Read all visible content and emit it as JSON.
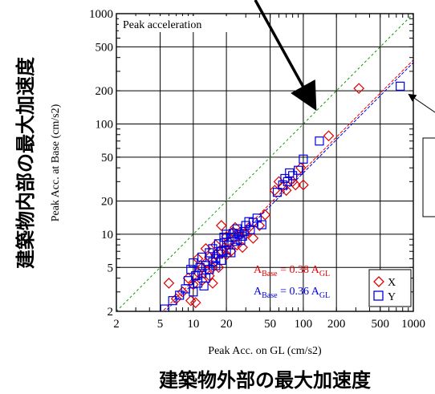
{
  "chart_data": {
    "type": "scatter",
    "title": "Peak acceleration",
    "xlabel": "Peak Acc. on GL (cm/s2)",
    "ylabel": "Peak Acc. at Base (cm/s2)",
    "xlabel_jp": "建築物外部の最大加速度",
    "ylabel_jp": "建築物内部の最大加速度",
    "x_scale": "log",
    "y_scale": "log",
    "xlim": [
      2,
      1000
    ],
    "ylim": [
      2,
      1000
    ],
    "x_ticks": [
      2,
      5,
      10,
      20,
      50,
      100,
      200,
      500,
      1000
    ],
    "y_ticks": [
      2,
      5,
      10,
      20,
      50,
      100,
      200,
      500,
      1000
    ],
    "grid": true,
    "reference_line": {
      "slope": 1,
      "color": "#0a9a0a"
    },
    "fits": [
      {
        "label_main": "A",
        "label_sub1": "Base",
        "label_eq": " = 0.38 A",
        "label_sub2": "GL",
        "coef": 0.38,
        "color": "#e00000"
      },
      {
        "label_main": "A",
        "label_sub1": "Base",
        "label_eq": " = 0.36 A",
        "label_sub2": "GL",
        "coef": 0.36,
        "color": "#0000e0"
      }
    ],
    "series": [
      {
        "name": "X",
        "marker": "diamond",
        "color": "#e00000",
        "x": [
          6,
          7,
          8,
          9,
          9.5,
          10,
          10.5,
          11,
          11,
          12,
          12,
          13,
          13,
          14,
          14,
          15,
          15,
          16,
          16,
          17,
          18,
          18,
          19,
          20,
          20,
          21,
          22,
          23,
          24,
          25,
          26,
          28,
          30,
          32,
          35,
          40,
          45,
          55,
          60,
          65,
          70,
          80,
          85,
          95,
          100,
          170,
          320
        ],
        "y": [
          3.6,
          2.6,
          3.0,
          4.0,
          2.5,
          3.5,
          2.4,
          4.5,
          6.0,
          3.8,
          5.0,
          5.5,
          7.4,
          4.2,
          6.2,
          5.0,
          3.6,
          6.5,
          8.0,
          5.0,
          6.8,
          12.0,
          7.5,
          6.5,
          9.5,
          8.5,
          7.0,
          10.5,
          11.5,
          8.0,
          9.8,
          7.6,
          10.0,
          11.5,
          9.2,
          12.0,
          15.0,
          25.0,
          30.0,
          27.0,
          25.0,
          30.0,
          28.0,
          40.0,
          28.0,
          78.0,
          210.0
        ]
      },
      {
        "name": "Y",
        "marker": "square",
        "color": "#0000e0",
        "x": [
          5.5,
          6.5,
          7.5,
          8.5,
          9,
          9.5,
          10,
          10,
          10.5,
          11,
          11.5,
          12,
          12,
          12.5,
          13,
          13,
          14,
          14,
          15,
          15,
          16,
          16,
          17,
          17,
          18,
          18,
          19,
          19,
          20,
          20,
          21,
          22,
          22,
          23,
          24,
          25,
          25,
          26,
          27,
          28,
          29,
          30,
          32,
          33,
          35,
          38,
          42,
          58,
          65,
          68,
          72,
          75,
          80,
          90,
          100,
          140,
          760
        ],
        "y": [
          2.1,
          2.5,
          2.8,
          3.2,
          3.8,
          4.8,
          3.0,
          5.5,
          4.2,
          3.6,
          5.0,
          4.4,
          6.2,
          3.4,
          5.2,
          4.0,
          4.8,
          6.8,
          5.6,
          7.4,
          6.0,
          5.2,
          6.6,
          8.2,
          5.8,
          7.0,
          8.4,
          9.4,
          7.2,
          10.0,
          8.0,
          6.8,
          9.4,
          10.2,
          8.6,
          9.0,
          11.2,
          10.0,
          8.8,
          9.6,
          10.6,
          12.0,
          13.0,
          11.0,
          12.8,
          14.0,
          12.2,
          24.0,
          28.0,
          32.0,
          30.0,
          36.0,
          34.0,
          38.0,
          48.0,
          70.0,
          220.0
        ]
      }
    ],
    "legend": {
      "position": "bottom-right",
      "items": [
        "X",
        "Y"
      ]
    },
    "arrow_annotation": {
      "from": "top-left",
      "to_note": "points at the 1:1 line"
    }
  }
}
